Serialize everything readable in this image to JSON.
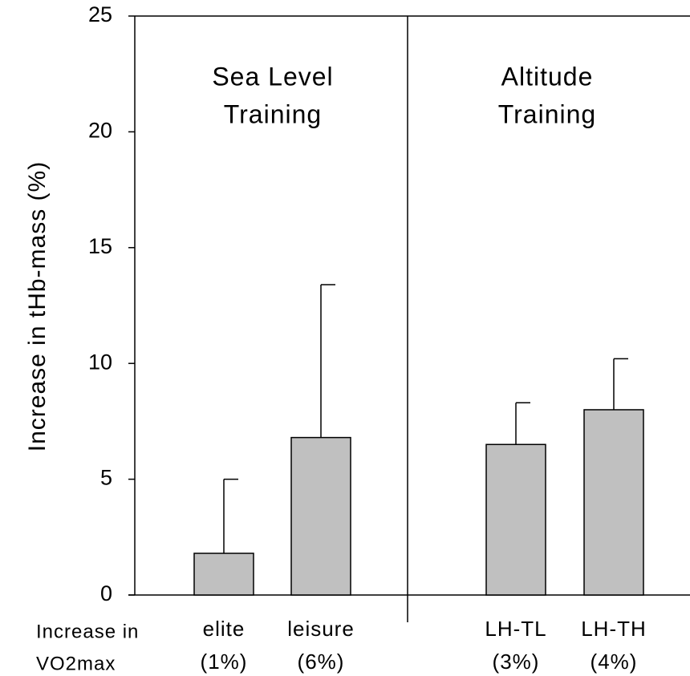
{
  "chart_data": {
    "type": "bar",
    "y_label": "Increase in tHb-mass (%)",
    "categories": [
      "elite",
      "leisure",
      "LH-TL",
      "LH-TH"
    ],
    "category_notes": [
      "(1%)",
      "(6%)",
      "(3%)",
      "(4%)"
    ],
    "row_label": [
      "Increase in",
      "VO2max"
    ],
    "groups": [
      {
        "label": [
          "Sea Level",
          "Training"
        ]
      },
      {
        "label": [
          "Altitude",
          "Training"
        ]
      }
    ],
    "values": [
      1.8,
      6.8,
      6.5,
      8.0
    ],
    "errors": [
      3.2,
      6.6,
      1.8,
      2.2
    ],
    "color": "#c0c0c0",
    "ylim": [
      0,
      25
    ],
    "yticks": [
      0,
      5,
      10,
      15,
      20,
      25
    ]
  }
}
